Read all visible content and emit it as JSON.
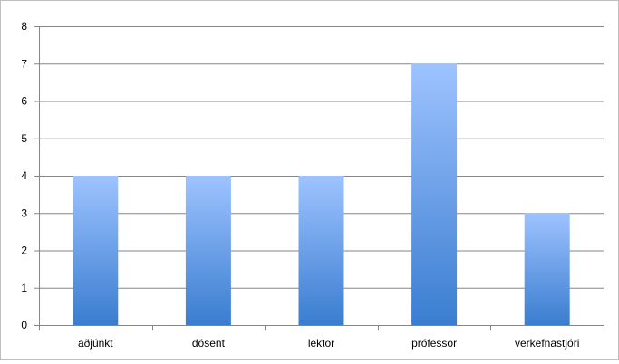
{
  "chart_data": {
    "type": "bar",
    "title": "",
    "xlabel": "",
    "ylabel": "",
    "categories": [
      "aðjúnkt",
      "dósent",
      "lektor",
      "prófessor",
      "verkefnastjóri"
    ],
    "values": [
      4,
      4,
      4,
      7,
      3
    ],
    "ylim": [
      0,
      8
    ],
    "yticks": [
      "0",
      "1",
      "2",
      "3",
      "4",
      "5",
      "6",
      "7",
      "8"
    ],
    "grid": true,
    "legend": "none",
    "colors": {
      "bar_top": "#9ec3ff",
      "bar_bottom": "#3a7dd0",
      "grid": "#868686",
      "axis": "#868686"
    }
  }
}
